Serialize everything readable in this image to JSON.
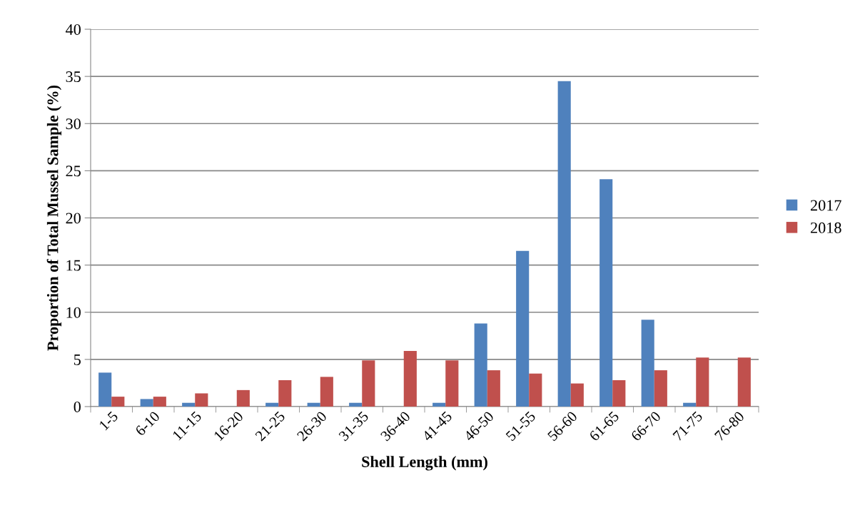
{
  "chart_data": {
    "type": "bar",
    "xlabel": "Shell Length (mm)",
    "ylabel": "Proportion of Total Mussel Sample (%)",
    "categories": [
      "1-5",
      "6-10",
      "11-15",
      "16-20",
      "21-25",
      "26-30",
      "31-35",
      "36-40",
      "41-45",
      "46-50",
      "51-55",
      "56-60",
      "61-65",
      "66-70",
      "71-75",
      "76-80"
    ],
    "series": [
      {
        "name": "2017",
        "color": "#4f81bd",
        "values": [
          3.6,
          0.8,
          0.4,
          0,
          0.4,
          0.4,
          0.4,
          0,
          0.4,
          8.8,
          16.5,
          34.5,
          24.1,
          9.2,
          0.4,
          0
        ]
      },
      {
        "name": "2018",
        "color": "#c0504d",
        "values": [
          1.05,
          1.05,
          1.4,
          1.75,
          2.8,
          3.15,
          4.9,
          5.9,
          4.9,
          3.85,
          3.5,
          2.45,
          2.8,
          3.85,
          5.2,
          5.2
        ]
      }
    ],
    "ylim": [
      0,
      40
    ],
    "yticks": [
      0,
      5,
      10,
      15,
      20,
      25,
      30,
      35,
      40
    ],
    "grid": "y",
    "legend": "right"
  }
}
